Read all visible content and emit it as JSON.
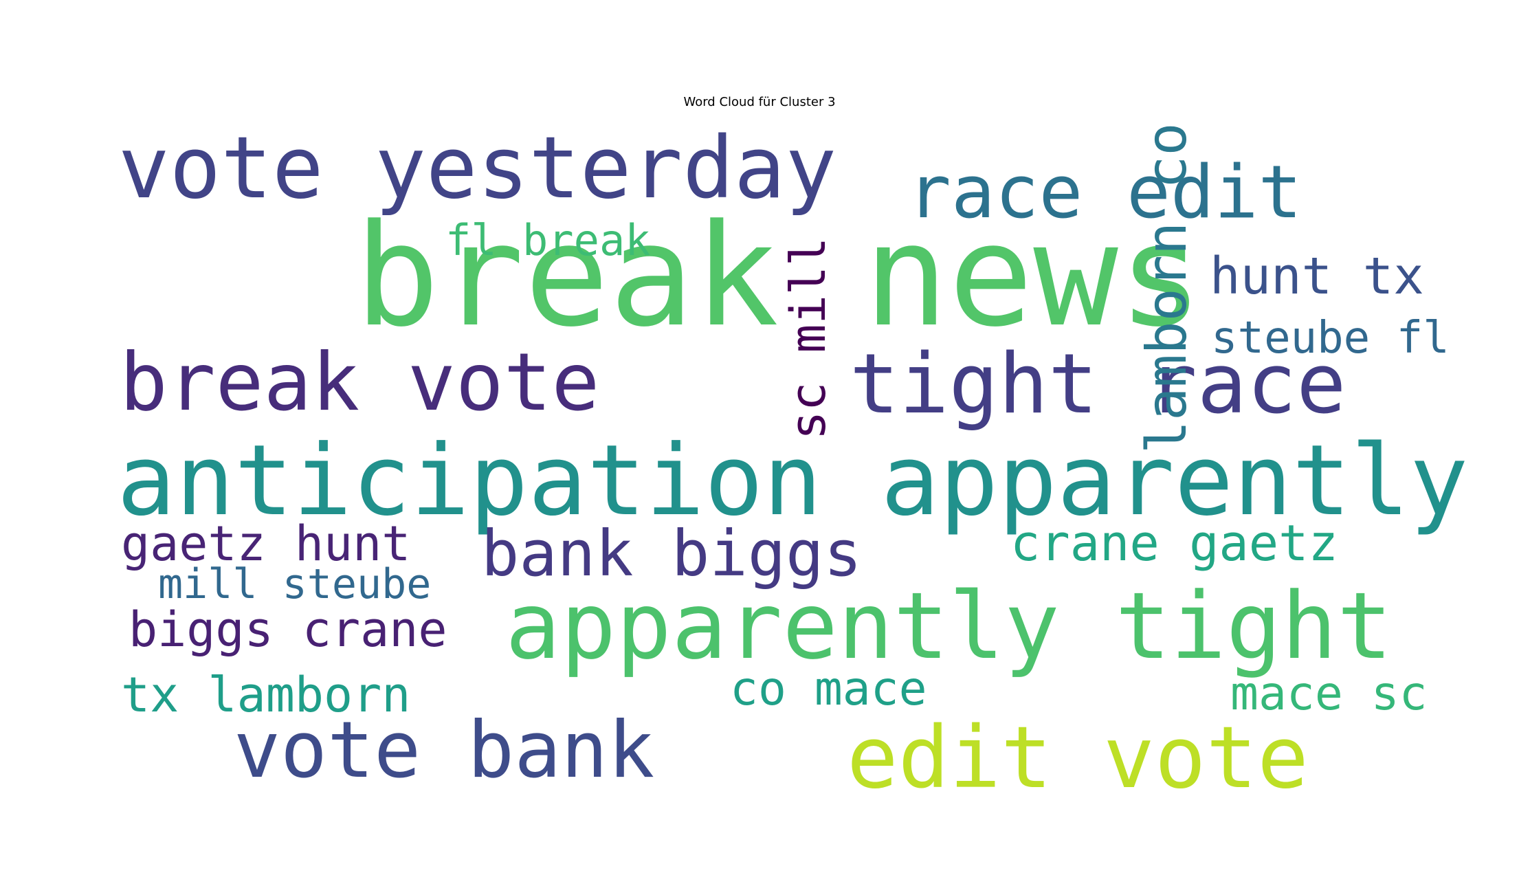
{
  "chart_data": {
    "type": "wordcloud",
    "title": "Word Cloud für Cluster 3",
    "words": [
      {
        "text": "break news",
        "weight": 1.0,
        "color": "#52c569"
      },
      {
        "text": "anticipation apparently",
        "weight": 0.8,
        "color": "#21918c"
      },
      {
        "text": "apparently tight",
        "weight": 0.76,
        "color": "#4cc26c"
      },
      {
        "text": "vote yesterday",
        "weight": 0.7,
        "color": "#414487"
      },
      {
        "text": "edit vote",
        "weight": 0.7,
        "color": "#bddf26"
      },
      {
        "text": "tight race",
        "weight": 0.68,
        "color": "#433e85"
      },
      {
        "text": "break vote",
        "weight": 0.66,
        "color": "#472d7b"
      },
      {
        "text": "vote bank",
        "weight": 0.64,
        "color": "#3e4c8a"
      },
      {
        "text": "race edit",
        "weight": 0.6,
        "color": "#2c728e"
      },
      {
        "text": "bank biggs",
        "weight": 0.52,
        "color": "#443a83"
      },
      {
        "text": "lamborn co",
        "weight": 0.45,
        "color": "#2a788e"
      },
      {
        "text": "hunt tx",
        "weight": 0.42,
        "color": "#3b528b"
      },
      {
        "text": "crane gaetz",
        "weight": 0.4,
        "color": "#22a785"
      },
      {
        "text": "sc mill",
        "weight": 0.4,
        "color": "#440154"
      },
      {
        "text": "gaetz hunt",
        "weight": 0.39,
        "color": "#482475"
      },
      {
        "text": "biggs crane",
        "weight": 0.39,
        "color": "#482173"
      },
      {
        "text": "tx lamborn",
        "weight": 0.39,
        "color": "#1f9e89"
      },
      {
        "text": "co mace",
        "weight": 0.38,
        "color": "#1fa088"
      },
      {
        "text": "mace sc",
        "weight": 0.38,
        "color": "#35b779"
      },
      {
        "text": "steube fl",
        "weight": 0.36,
        "color": "#31688e"
      },
      {
        "text": "fl break",
        "weight": 0.35,
        "color": "#3dbc74"
      },
      {
        "text": "mill steube",
        "weight": 0.34,
        "color": "#31688e"
      }
    ]
  }
}
